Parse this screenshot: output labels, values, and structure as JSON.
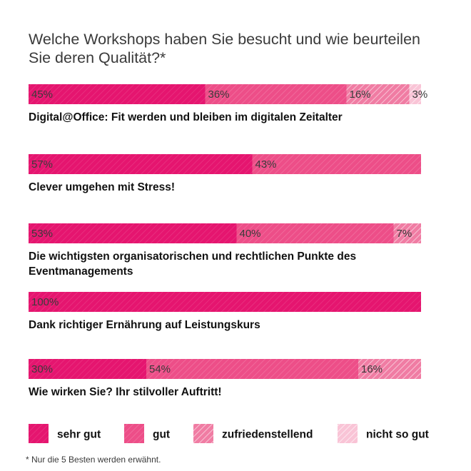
{
  "title": "Welche Workshops haben Sie besucht und wie beurteilen Sie deren Qualität?*",
  "footnote": "* Nur die 5 Besten werden erwähnt.",
  "colors": {
    "sehr_gut": "#e5156f",
    "gut": "#ed4e88",
    "zufriedenstellend": "#f07ca3",
    "nicht_so_gut": "#f9c4d6",
    "stripe": "#ffffff"
  },
  "chart_data": {
    "type": "bar",
    "orientation": "horizontal",
    "stacked": true,
    "normalized_percent": true,
    "categories": [
      [
        "Digital@Office: Fit werden und bleiben im digitalen Zeitalter"
      ],
      [
        "Clever umgehen mit Stress!"
      ],
      [
        "Die wichtigsten organisatorischen und rechtlichen Punkte des",
        "Eventmanagements"
      ],
      [
        "Dank richtiger Ernährung auf Leistungskurs"
      ],
      [
        "Wie wirken Sie? Ihr stilvoller Auftritt!"
      ]
    ],
    "series": [
      {
        "name": "sehr gut",
        "values": [
          45,
          57,
          53,
          100,
          30
        ],
        "labels": [
          "45%",
          "57%",
          "53%",
          "100%",
          "30%"
        ]
      },
      {
        "name": "gut",
        "values": [
          36,
          43,
          40,
          0,
          54
        ],
        "labels": [
          "36%",
          "43%",
          "40%",
          "",
          "54%"
        ]
      },
      {
        "name": "zufriedenstellend",
        "values": [
          16,
          0,
          7,
          0,
          16
        ],
        "labels": [
          "16%",
          "",
          "7%",
          "",
          "16%"
        ]
      },
      {
        "name": "nicht so gut",
        "values": [
          3,
          0,
          0,
          0,
          0
        ],
        "labels": [
          "3%",
          "",
          "",
          "",
          ""
        ]
      }
    ],
    "xlim": [
      0,
      100
    ],
    "legend_position": "bottom",
    "grid": false
  }
}
